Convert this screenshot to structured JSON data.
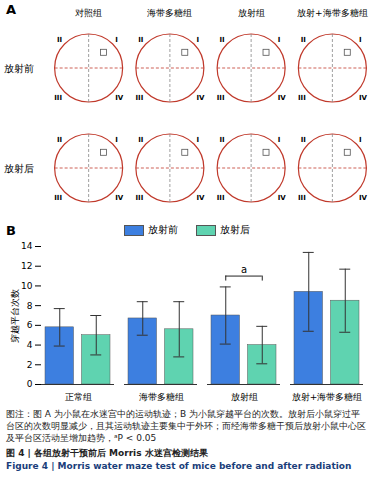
{
  "panel_a": {
    "label": "A",
    "columns": [
      "对照组",
      "海带多糖组",
      "放射组",
      "放射+海带多糖组"
    ],
    "rows": [
      "放射前",
      "放射后"
    ],
    "quadrants": [
      "I",
      "II",
      "III",
      "IV"
    ]
  },
  "chart_data": {
    "type": "bar",
    "label": "B",
    "y_label": "穿越平台次数",
    "categories": [
      "正常组",
      "海带多糖组",
      "放射组",
      "放射+海带多糖组"
    ],
    "series": [
      {
        "name": "放射前",
        "color": "#3d7fe0",
        "values": [
          5.8,
          6.7,
          7.0,
          9.4
        ],
        "errors": [
          1.9,
          1.7,
          2.9,
          4.0
        ]
      },
      {
        "name": "放射后",
        "color": "#5fd3b0",
        "values": [
          5.0,
          5.6,
          4.0,
          8.5
        ],
        "errors": [
          2.0,
          2.8,
          1.9,
          3.2
        ]
      }
    ],
    "ylim": [
      0,
      14
    ],
    "yticks": [
      0,
      2,
      4,
      6,
      8,
      10,
      12,
      14
    ],
    "grid": false,
    "legend": "top",
    "annotations": [
      {
        "text": "a",
        "category": "放射组",
        "y": 11
      }
    ]
  },
  "caption": {
    "note": "图注：图 A 为小鼠在水迷宫中的运动轨迹；B 为小鼠穿越平台的次数。放射后小鼠穿过平台区的次数明显减少，且其运动轨迹主要集中于外环；而经海带多糖干预后放射小鼠中心区及平台区活动呈增加趋势，ᵃP < 0.05",
    "title_zh": "图 4 | 各组放射干预前后 Morris 水迷宫检测结果",
    "title_en": "Figure 4 | Morris water maze test of mice before and after radiation"
  }
}
